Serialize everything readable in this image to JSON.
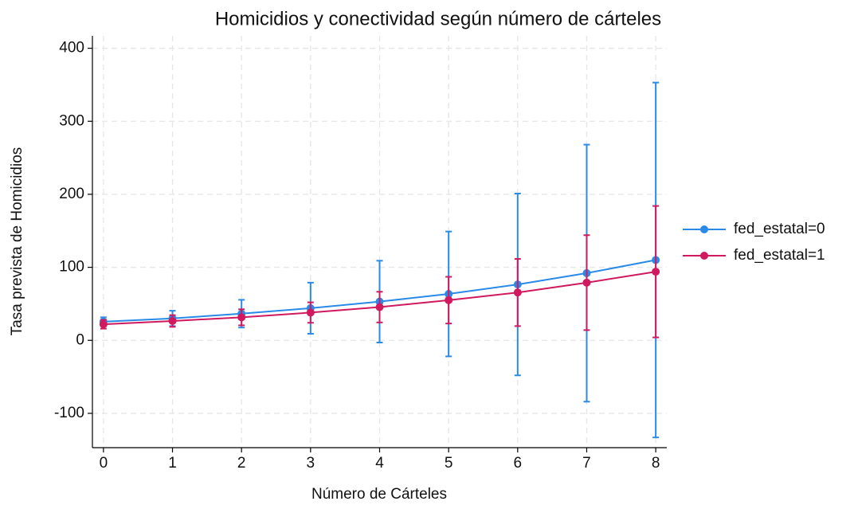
{
  "chart_data": {
    "type": "line",
    "title": "Homicidios y conectividad según número de cárteles",
    "x_label": "Número de Cárteles",
    "y_label": "Tasa prevista de Homicidios",
    "x": [
      0,
      1,
      2,
      3,
      4,
      5,
      6,
      7,
      8
    ],
    "series": [
      {
        "name": "fed_estatal=0",
        "color": "#2a8ae8",
        "values": [
          25.5,
          30,
          36.5,
          44,
          53,
          63.5,
          76.5,
          92,
          110
        ],
        "ci_low": [
          19.5,
          19.5,
          17.5,
          9,
          -3,
          -22,
          -48,
          -84,
          -133
        ],
        "ci_high": [
          31.5,
          40.5,
          55.5,
          79,
          109,
          149,
          201,
          268,
          353
        ]
      },
      {
        "name": "fed_estatal=1",
        "color": "#d0195e",
        "values": [
          22,
          26.5,
          31.5,
          38,
          45.5,
          55,
          65.5,
          79,
          94
        ],
        "ci_low": [
          16,
          18.5,
          20.5,
          24,
          24.5,
          23,
          19.5,
          14,
          4
        ],
        "ci_high": [
          28,
          34.5,
          42.5,
          52,
          66.5,
          87,
          111.5,
          144,
          184
        ]
      }
    ],
    "xlim": [
      -0.16,
      8.16
    ],
    "xticks": [
      0,
      1,
      2,
      3,
      4,
      5,
      6,
      7,
      8
    ],
    "ylim": [
      -147,
      417
    ],
    "yticks": [
      -100,
      0,
      100,
      200,
      300,
      400
    ],
    "grid": true,
    "legend": "right"
  }
}
